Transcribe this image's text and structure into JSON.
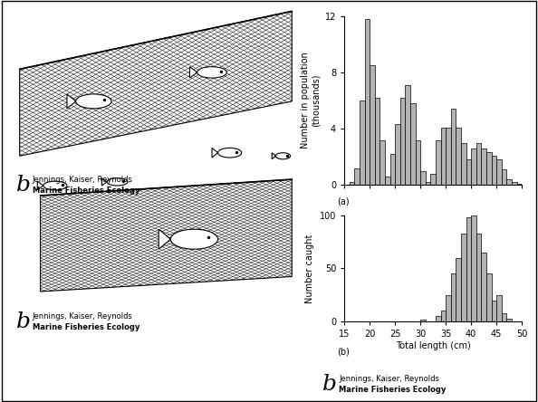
{
  "chart_data": [
    {
      "type": "histogram",
      "label": "(a)",
      "y_label": "Number in population\n(thousands)",
      "bins": [
        16,
        17,
        18,
        19,
        20,
        21,
        22,
        23,
        24,
        25,
        26,
        27,
        28,
        29,
        30,
        31,
        32,
        33,
        34,
        35,
        36,
        37,
        38,
        39,
        40,
        41,
        42,
        43,
        44,
        45,
        46,
        47,
        48,
        49,
        50
      ],
      "counts": [
        0.2,
        1.2,
        6.0,
        11.8,
        8.5,
        6.2,
        3.2,
        0.6,
        2.2,
        4.3,
        6.2,
        7.1,
        5.8,
        3.2,
        1.0,
        0.2,
        0.8,
        3.2,
        4.1,
        4.1,
        5.4,
        4.1,
        3.0,
        1.8,
        2.6,
        3.0,
        2.6,
        2.3,
        2.1,
        1.8,
        1.1,
        0.4,
        0.2,
        0.05
      ],
      "xlim": [
        15,
        50
      ],
      "xticks": [
        15,
        20,
        25,
        30,
        35,
        40,
        45,
        50
      ],
      "ylim": [
        0,
        12
      ],
      "yticks": [
        0,
        4,
        8,
        12
      ],
      "tick_labels": "y",
      "color": "#b3b3b3"
    },
    {
      "type": "histogram",
      "label": "(b)",
      "x_label": "Total length (cm)",
      "y_label": "Number caught",
      "bins": [
        30,
        31,
        32,
        33,
        34,
        35,
        36,
        37,
        38,
        39,
        40,
        41,
        42,
        43,
        44,
        45,
        46,
        47,
        48
      ],
      "counts": [
        2,
        0,
        0,
        5,
        10,
        25,
        45,
        60,
        83,
        98,
        100,
        83,
        65,
        45,
        20,
        25,
        8,
        3
      ],
      "xlim": [
        15,
        50
      ],
      "xticks": [
        15,
        20,
        25,
        30,
        35,
        40,
        45,
        50
      ],
      "ylim": [
        0,
        100
      ],
      "yticks": [
        0,
        50,
        100
      ],
      "color": "#b3b3b3"
    }
  ],
  "credits": [
    {
      "mark": "b",
      "authors": "Jennings, Kaiser, Reynolds",
      "title": "Marine Fisheries Ecology"
    },
    {
      "mark": "b",
      "authors": "Jennings, Kaiser, Reynolds",
      "title": "Marine Fisheries Ecology"
    },
    {
      "mark": "b",
      "authors": "Jennings, Kaiser, Reynolds",
      "title": "Marine Fisheries Ecology"
    }
  ]
}
